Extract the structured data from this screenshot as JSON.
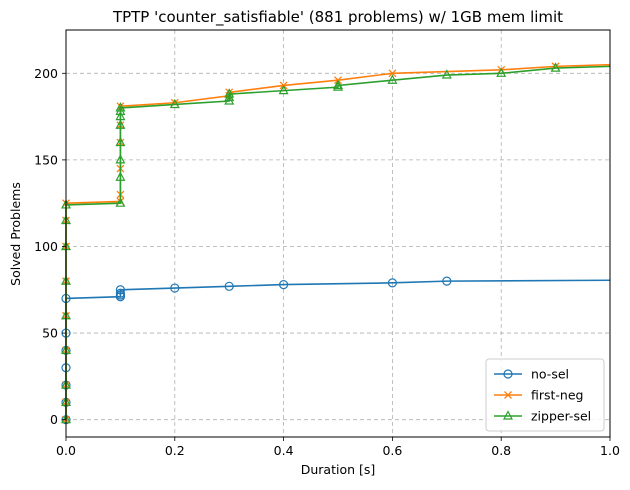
{
  "chart_data": {
    "type": "line",
    "title": "TPTP 'counter_satisfiable' (881 problems) w/ 1GB mem limit",
    "xlabel": "Duration [s]",
    "ylabel": "Solved Problems",
    "xlim": [
      0.0,
      1.0
    ],
    "ylim": [
      -10,
      225
    ],
    "xticks": [
      "0.0",
      "0.2",
      "0.4",
      "0.6",
      "0.8",
      "1.0"
    ],
    "yticks": [
      "0",
      "50",
      "100",
      "150",
      "200"
    ],
    "grid": true,
    "legend_position": "lower-right",
    "series": [
      {
        "name": "no-sel",
        "color": "#1f77b4",
        "marker": "circle",
        "x": [
          0.0,
          0.0,
          0.0,
          0.0,
          0.0,
          0.0,
          0.0,
          0.1,
          0.1,
          0.1,
          0.1,
          0.2,
          0.3,
          0.4,
          0.6,
          0.7,
          1.0
        ],
        "y": [
          0,
          10,
          20,
          30,
          40,
          50,
          70,
          71,
          72,
          73,
          75,
          76,
          77,
          78,
          79,
          80,
          80.5
        ]
      },
      {
        "name": "first-neg",
        "color": "#ff7f0e",
        "marker": "x",
        "x": [
          0.0,
          0.0,
          0.0,
          0.0,
          0.0,
          0.0,
          0.0,
          0.0,
          0.0,
          0.1,
          0.1,
          0.1,
          0.1,
          0.1,
          0.1,
          0.2,
          0.3,
          0.3,
          0.4,
          0.5,
          0.6,
          0.8,
          0.9,
          1.0
        ],
        "y": [
          0,
          10,
          20,
          40,
          60,
          80,
          100,
          115,
          125,
          126,
          130,
          145,
          160,
          170,
          181,
          183,
          187,
          189,
          193,
          196,
          200,
          202,
          204,
          205
        ]
      },
      {
        "name": "zipper-sel",
        "color": "#2ca02c",
        "marker": "triangle",
        "x": [
          0.0,
          0.0,
          0.0,
          0.0,
          0.0,
          0.0,
          0.0,
          0.0,
          0.0,
          0.1,
          0.1,
          0.1,
          0.1,
          0.1,
          0.1,
          0.1,
          0.1,
          0.2,
          0.3,
          0.3,
          0.3,
          0.4,
          0.5,
          0.5,
          0.6,
          0.7,
          0.8,
          0.9,
          1.0
        ],
        "y": [
          0,
          10,
          20,
          40,
          60,
          80,
          100,
          115,
          124,
          125,
          140,
          150,
          160,
          170,
          175,
          178,
          180,
          182,
          184,
          186,
          188,
          190,
          192,
          193,
          196,
          199,
          200,
          203,
          204
        ]
      }
    ]
  }
}
